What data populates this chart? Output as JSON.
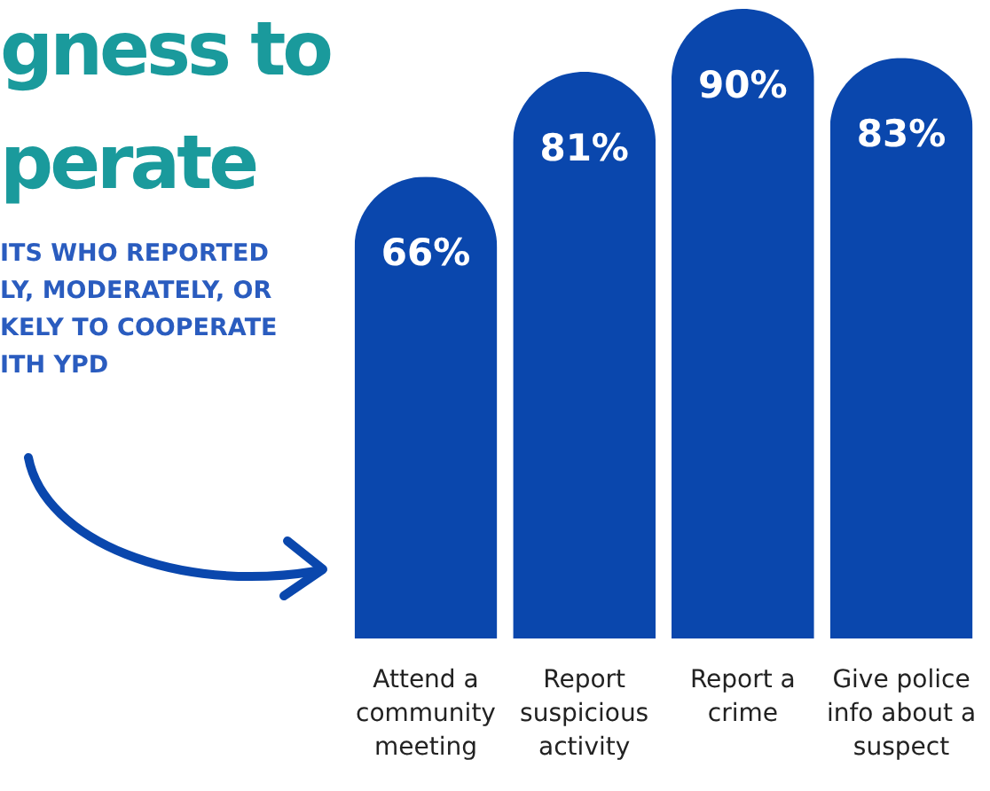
{
  "chart_data": {
    "type": "bar",
    "title": "gness to\nperate",
    "subtitle": "ITS WHO REPORTED\nLY, MODERATELY, OR\nKELY TO COOPERATE\nITH YPD",
    "categories": [
      "Attend a community meeting",
      "Report suspicious activity",
      "Report a crime",
      "Give police info about a suspect"
    ],
    "values": [
      66,
      81,
      90,
      83
    ],
    "color": "#0a47ad",
    "data_labels": true,
    "value_labels": [
      "66%",
      "81%",
      "90%",
      "83%"
    ]
  }
}
